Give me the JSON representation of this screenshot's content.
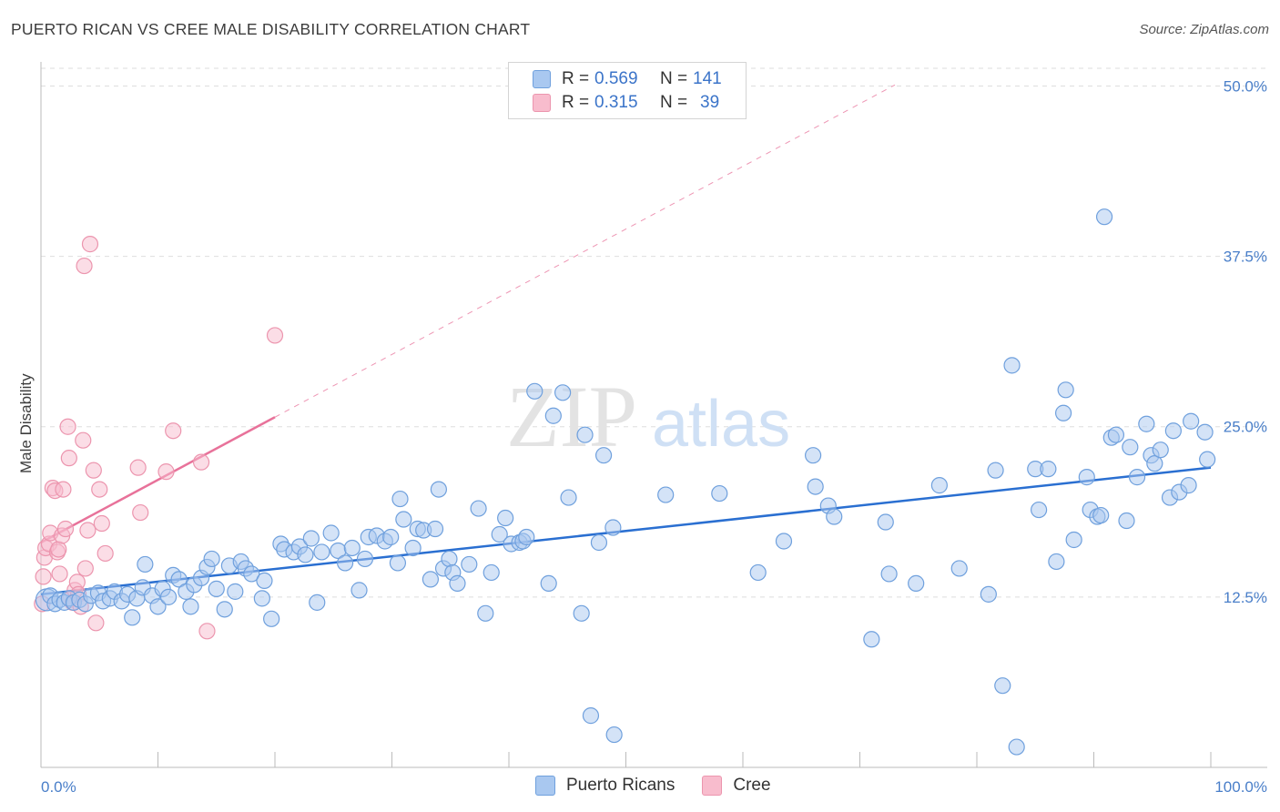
{
  "header": {
    "title": "PUERTO RICAN VS CREE MALE DISABILITY CORRELATION CHART",
    "source": "Source: ZipAtlas.com"
  },
  "watermark": {
    "zip": "ZIP",
    "atlas": "atlas"
  },
  "legend": {
    "rows": [
      {
        "r_label": "R =",
        "r_value": "0.569",
        "n_label": "N =",
        "n_value": "141",
        "color": "#a9c8f0"
      },
      {
        "r_label": "R =",
        "r_value": "0.315",
        "n_label": "N =",
        "n_value": "39",
        "color": "#f8bccd"
      }
    ]
  },
  "bottom_legend": {
    "series1": "Puerto Ricans",
    "series2": "Cree"
  },
  "colors": {
    "blue_fill": "#a9c8f0",
    "blue_stroke": "#6fa0dd",
    "blue_line": "#2a6fd1",
    "pink_fill": "#f8bccd",
    "pink_stroke": "#ec95ae",
    "pink_line": "#e8729a",
    "grid": "#dedede",
    "tick_text": "#4a7fc9"
  },
  "chart_data": {
    "type": "scatter",
    "title": "PUERTO RICAN VS CREE MALE DISABILITY CORRELATION CHART",
    "xlabel": "",
    "ylabel": "Male Disability",
    "xlim": [
      0,
      100
    ],
    "ylim": [
      0,
      51.5
    ],
    "x_ticks": [
      "0.0%",
      "100.0%"
    ],
    "y_ticks": [
      {
        "value": 12.5,
        "label": "12.5%"
      },
      {
        "value": 25.0,
        "label": "25.0%"
      },
      {
        "value": 37.5,
        "label": "37.5%"
      },
      {
        "value": 50.0,
        "label": "50.0%"
      }
    ],
    "grid": true,
    "legend_position": "top-center",
    "series": [
      {
        "name": "Puerto Ricans",
        "trend": {
          "x0": 0,
          "y0": 12.7,
          "x1": 100,
          "y1": 22.0,
          "style": "solid"
        },
        "points": [
          [
            0.5,
            12.3
          ],
          [
            0.8,
            12.6
          ],
          [
            1.2,
            12.0
          ],
          [
            1.6,
            12.3
          ],
          [
            2.0,
            12.1
          ],
          [
            2.4,
            12.4
          ],
          [
            2.8,
            12.1
          ],
          [
            3.3,
            12.3
          ],
          [
            3.8,
            12.0
          ],
          [
            4.3,
            12.6
          ],
          [
            4.9,
            12.8
          ],
          [
            5.3,
            12.2
          ],
          [
            5.9,
            12.4
          ],
          [
            6.3,
            12.9
          ],
          [
            6.9,
            12.2
          ],
          [
            7.4,
            12.7
          ],
          [
            7.8,
            11.0
          ],
          [
            8.2,
            12.4
          ],
          [
            8.7,
            13.2
          ],
          [
            8.9,
            14.9
          ],
          [
            9.5,
            12.6
          ],
          [
            10.0,
            11.8
          ],
          [
            10.4,
            13.1
          ],
          [
            10.9,
            12.5
          ],
          [
            11.3,
            14.1
          ],
          [
            11.8,
            13.8
          ],
          [
            12.4,
            12.9
          ],
          [
            12.8,
            11.8
          ],
          [
            13.1,
            13.4
          ],
          [
            13.7,
            13.9
          ],
          [
            14.2,
            14.7
          ],
          [
            14.6,
            15.3
          ],
          [
            15.0,
            13.1
          ],
          [
            15.7,
            11.6
          ],
          [
            16.1,
            14.8
          ],
          [
            16.6,
            12.9
          ],
          [
            17.1,
            15.1
          ],
          [
            17.5,
            14.6
          ],
          [
            18.0,
            14.2
          ],
          [
            18.9,
            12.4
          ],
          [
            19.1,
            13.7
          ],
          [
            19.7,
            10.9
          ],
          [
            20.5,
            16.4
          ],
          [
            20.8,
            16.0
          ],
          [
            21.6,
            15.8
          ],
          [
            22.1,
            16.2
          ],
          [
            22.6,
            15.6
          ],
          [
            23.1,
            16.8
          ],
          [
            23.6,
            12.1
          ],
          [
            24.0,
            15.8
          ],
          [
            24.8,
            17.2
          ],
          [
            25.4,
            15.9
          ],
          [
            26.0,
            15.0
          ],
          [
            26.6,
            16.1
          ],
          [
            27.2,
            13.0
          ],
          [
            27.7,
            15.3
          ],
          [
            28.0,
            16.9
          ],
          [
            28.7,
            17.0
          ],
          [
            29.4,
            16.6
          ],
          [
            29.9,
            16.9
          ],
          [
            30.5,
            15.0
          ],
          [
            30.7,
            19.7
          ],
          [
            31.0,
            18.2
          ],
          [
            31.8,
            16.1
          ],
          [
            32.2,
            17.5
          ],
          [
            32.7,
            17.4
          ],
          [
            33.3,
            13.8
          ],
          [
            33.7,
            17.5
          ],
          [
            34.0,
            20.4
          ],
          [
            34.4,
            14.6
          ],
          [
            34.9,
            15.3
          ],
          [
            35.2,
            14.3
          ],
          [
            35.6,
            13.5
          ],
          [
            36.6,
            14.9
          ],
          [
            37.4,
            19.0
          ],
          [
            38.0,
            11.3
          ],
          [
            38.5,
            14.3
          ],
          [
            39.2,
            17.1
          ],
          [
            39.7,
            18.3
          ],
          [
            40.2,
            16.4
          ],
          [
            40.9,
            16.5
          ],
          [
            41.2,
            16.6
          ],
          [
            41.5,
            16.9
          ],
          [
            42.2,
            27.6
          ],
          [
            43.4,
            13.5
          ],
          [
            43.8,
            25.8
          ],
          [
            44.6,
            27.5
          ],
          [
            45.1,
            19.8
          ],
          [
            46.2,
            11.3
          ],
          [
            46.5,
            24.4
          ],
          [
            47.0,
            3.8
          ],
          [
            47.7,
            16.5
          ],
          [
            48.1,
            22.9
          ],
          [
            48.9,
            17.6
          ],
          [
            49.0,
            2.4
          ],
          [
            53.4,
            20.0
          ],
          [
            58.0,
            20.1
          ],
          [
            61.3,
            14.3
          ],
          [
            63.5,
            16.6
          ],
          [
            66.0,
            22.9
          ],
          [
            66.2,
            20.6
          ],
          [
            67.3,
            19.2
          ],
          [
            67.8,
            18.4
          ],
          [
            71.0,
            9.4
          ],
          [
            72.2,
            18.0
          ],
          [
            72.5,
            14.2
          ],
          [
            74.8,
            13.5
          ],
          [
            76.8,
            20.7
          ],
          [
            78.5,
            14.6
          ],
          [
            81.0,
            12.7
          ],
          [
            81.6,
            21.8
          ],
          [
            82.2,
            6.0
          ],
          [
            83.0,
            29.5
          ],
          [
            83.4,
            1.5
          ],
          [
            85.0,
            21.9
          ],
          [
            85.3,
            18.9
          ],
          [
            86.1,
            21.9
          ],
          [
            86.8,
            15.1
          ],
          [
            87.4,
            26.0
          ],
          [
            87.6,
            27.7
          ],
          [
            88.3,
            16.7
          ],
          [
            89.4,
            21.3
          ],
          [
            89.7,
            18.9
          ],
          [
            90.3,
            18.4
          ],
          [
            90.6,
            18.5
          ],
          [
            90.9,
            40.4
          ],
          [
            91.5,
            24.2
          ],
          [
            91.9,
            24.4
          ],
          [
            92.8,
            18.1
          ],
          [
            93.1,
            23.5
          ],
          [
            93.7,
            21.3
          ],
          [
            94.5,
            25.2
          ],
          [
            94.9,
            22.9
          ],
          [
            95.2,
            22.3
          ],
          [
            95.7,
            23.3
          ],
          [
            96.5,
            19.8
          ],
          [
            96.8,
            24.7
          ],
          [
            97.3,
            20.2
          ],
          [
            98.1,
            20.7
          ],
          [
            98.3,
            25.4
          ],
          [
            99.5,
            24.6
          ],
          [
            99.7,
            22.6
          ]
        ]
      },
      {
        "name": "Cree",
        "trend": {
          "x0": 0,
          "y0": 16.5,
          "x1": 20,
          "y1": 25.7,
          "style": "solid",
          "extend_to_x": 73,
          "extend_style": "dashed"
        },
        "points": [
          [
            0.2,
            14.0
          ],
          [
            0.3,
            15.4
          ],
          [
            0.4,
            16.1
          ],
          [
            0.7,
            16.4
          ],
          [
            0.8,
            17.2
          ],
          [
            1.0,
            20.5
          ],
          [
            1.2,
            20.3
          ],
          [
            1.4,
            15.8
          ],
          [
            1.5,
            16.0
          ],
          [
            1.6,
            14.2
          ],
          [
            1.8,
            17.0
          ],
          [
            1.9,
            20.4
          ],
          [
            2.1,
            17.5
          ],
          [
            2.3,
            25.0
          ],
          [
            2.4,
            22.7
          ],
          [
            2.5,
            12.3
          ],
          [
            2.7,
            12.1
          ],
          [
            2.9,
            13.0
          ],
          [
            3.1,
            13.6
          ],
          [
            3.2,
            12.7
          ],
          [
            3.4,
            11.8
          ],
          [
            3.6,
            24.0
          ],
          [
            3.8,
            14.6
          ],
          [
            4.0,
            17.4
          ],
          [
            4.2,
            38.4
          ],
          [
            3.7,
            36.8
          ],
          [
            4.5,
            21.8
          ],
          [
            4.7,
            10.6
          ],
          [
            5.0,
            20.4
          ],
          [
            5.2,
            17.9
          ],
          [
            5.5,
            15.7
          ],
          [
            8.3,
            22.0
          ],
          [
            8.5,
            18.7
          ],
          [
            10.7,
            21.7
          ],
          [
            11.3,
            24.7
          ],
          [
            13.7,
            22.4
          ],
          [
            14.2,
            10.0
          ],
          [
            20.0,
            31.7
          ],
          [
            0.1,
            12.0
          ]
        ]
      }
    ]
  }
}
